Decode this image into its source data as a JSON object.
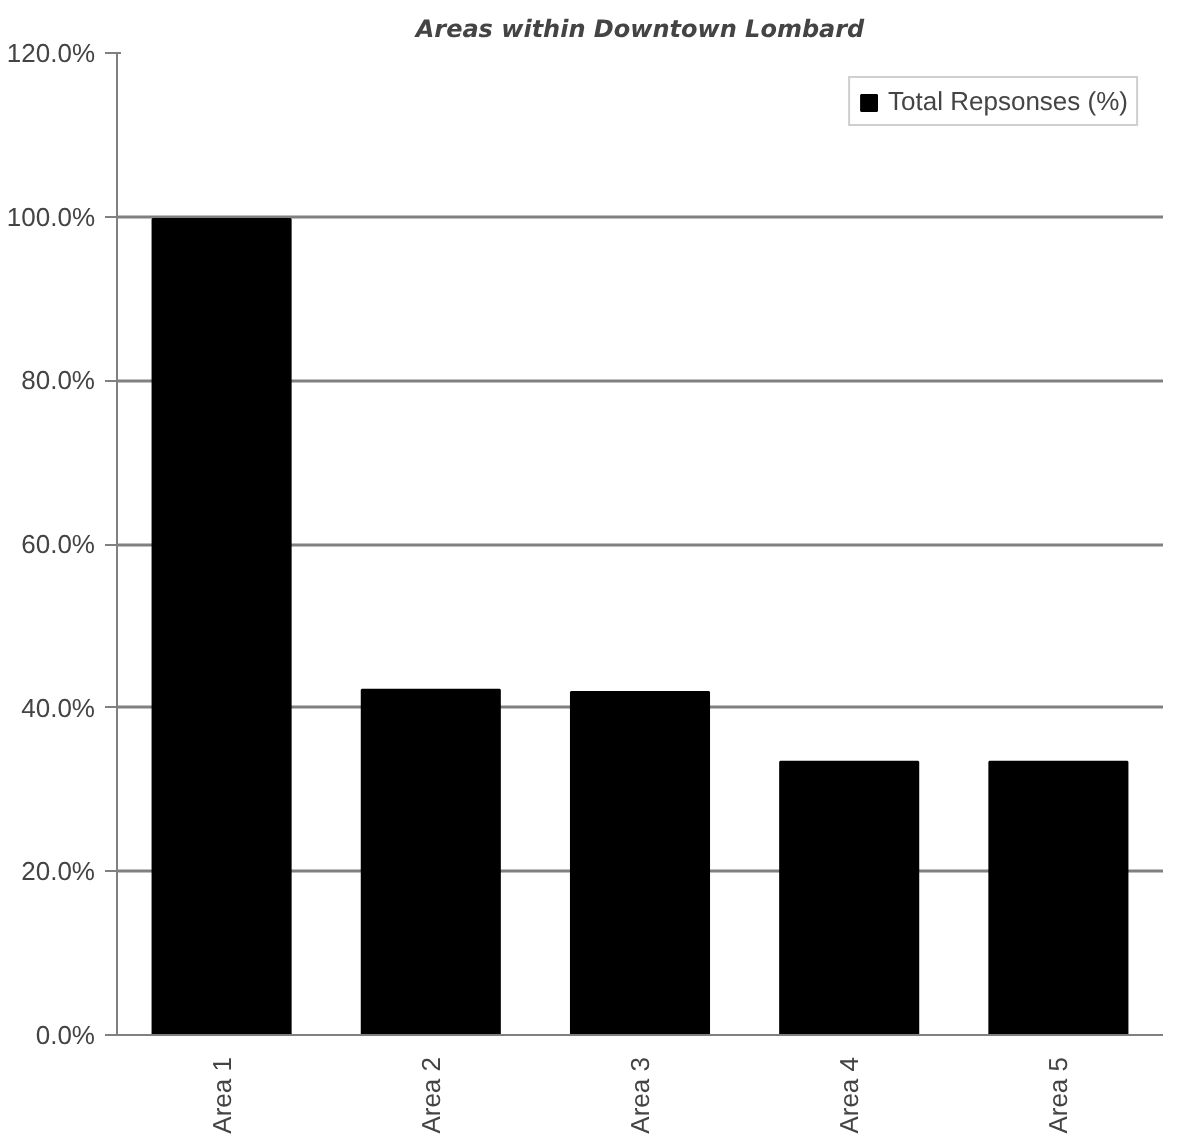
{
  "chart_data": {
    "type": "bar",
    "title": "Areas within Downtown Lombard",
    "categories": [
      "Area 1",
      "Area 2",
      "Area 3",
      "Area 4",
      "Area 5"
    ],
    "series": [
      {
        "name": "Total Repsonses (%)",
        "color": "#000000",
        "values": [
          99.7,
          42.2,
          41.9,
          33.4,
          33.4
        ]
      }
    ],
    "ylim": [
      0,
      120
    ],
    "yticks": [
      {
        "value": 0,
        "label": "0.0%"
      },
      {
        "value": 20,
        "label": "20.0%"
      },
      {
        "value": 40,
        "label": "40.0%"
      },
      {
        "value": 60,
        "label": "60.0%"
      },
      {
        "value": 80,
        "label": "80.0%"
      },
      {
        "value": 100,
        "label": "100.0%"
      },
      {
        "value": 120,
        "label": "120.0%"
      }
    ],
    "grid": "y",
    "legend": "top right"
  }
}
